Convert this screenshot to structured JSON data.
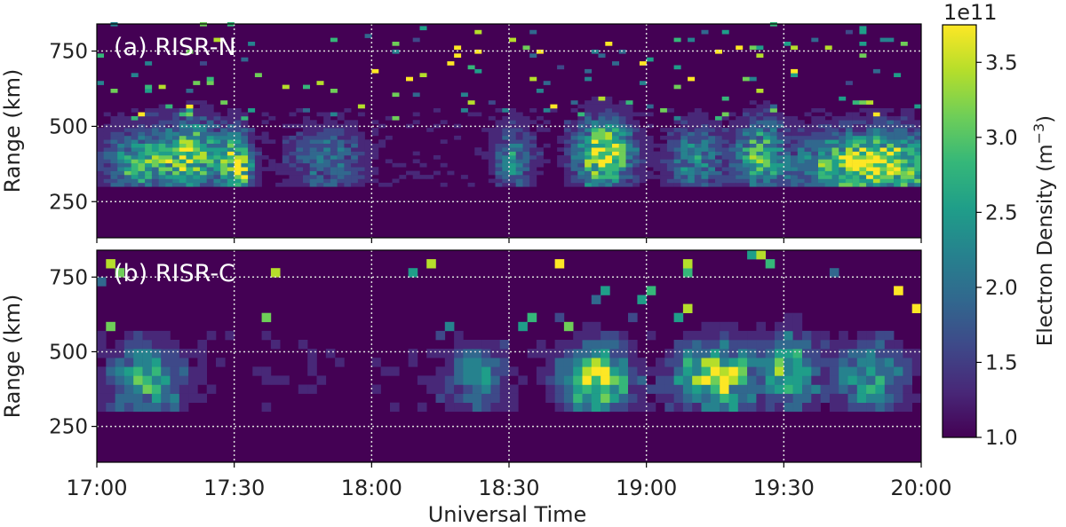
{
  "chart_data": {
    "type": "heatmap",
    "xlabel": "Universal Time",
    "x_ticks": [
      "17:00",
      "17:30",
      "18:00",
      "18:30",
      "19:00",
      "19:30",
      "20:00"
    ],
    "x_range_minutes": [
      0,
      180
    ],
    "ylabel": "Range (km)",
    "y_ticks": [
      250,
      500,
      750
    ],
    "y_range_km": [
      130,
      840
    ],
    "grid": true,
    "colorbar": {
      "label": "Electron Density (m",
      "label_exponent": "−3",
      "label_close": ")",
      "multiplier": "1e11",
      "range": [
        1.0,
        3.75
      ],
      "ticks": [
        "1.0",
        "1.5",
        "2.0",
        "2.5",
        "3.0",
        "3.5"
      ],
      "colormap": [
        "#440154",
        "#482878",
        "#3e4989",
        "#31688e",
        "#26828e",
        "#1f9e89",
        "#35b779",
        "#6ece58",
        "#b5de2b",
        "#fde725"
      ]
    },
    "panels": [
      {
        "label": "(a) RISR-N",
        "cell_minutes": 1.5,
        "cell_km": 13,
        "background_floor_km": 300,
        "activity_bursts": [
          {
            "center_min": 8,
            "width_min": 7,
            "peak_km": 370,
            "amp": 0.55
          },
          {
            "center_min": 20,
            "width_min": 7,
            "peak_km": 400,
            "amp": 0.75
          },
          {
            "center_min": 30,
            "width_min": 3,
            "peak_km": 350,
            "amp": 0.9
          },
          {
            "center_min": 50,
            "width_min": 8,
            "peak_km": 380,
            "amp": 0.35
          },
          {
            "center_min": 90,
            "width_min": 4,
            "peak_km": 380,
            "amp": 0.45
          },
          {
            "center_min": 110,
            "width_min": 6,
            "peak_km": 400,
            "amp": 0.95
          },
          {
            "center_min": 130,
            "width_min": 6,
            "peak_km": 380,
            "amp": 0.45
          },
          {
            "center_min": 144,
            "width_min": 5,
            "peak_km": 400,
            "amp": 0.6
          },
          {
            "center_min": 168,
            "width_min": 14,
            "peak_km": 360,
            "amp": 1.0
          }
        ]
      },
      {
        "label": "(b) RISR-C",
        "cell_minutes": 2,
        "cell_km": 30,
        "background_floor_km": 300,
        "activity_bursts": [
          {
            "center_min": 10,
            "width_min": 8,
            "peak_km": 390,
            "amp": 0.6
          },
          {
            "center_min": 82,
            "width_min": 6,
            "peak_km": 400,
            "amp": 0.45
          },
          {
            "center_min": 108,
            "width_min": 7,
            "peak_km": 390,
            "amp": 0.95
          },
          {
            "center_min": 130,
            "width_min": 6,
            "peak_km": 400,
            "amp": 0.55
          },
          {
            "center_min": 137,
            "width_min": 5,
            "peak_km": 400,
            "amp": 0.7
          },
          {
            "center_min": 150,
            "width_min": 6,
            "peak_km": 420,
            "amp": 0.7
          },
          {
            "center_min": 168,
            "width_min": 7,
            "peak_km": 400,
            "amp": 0.6
          }
        ]
      }
    ]
  }
}
